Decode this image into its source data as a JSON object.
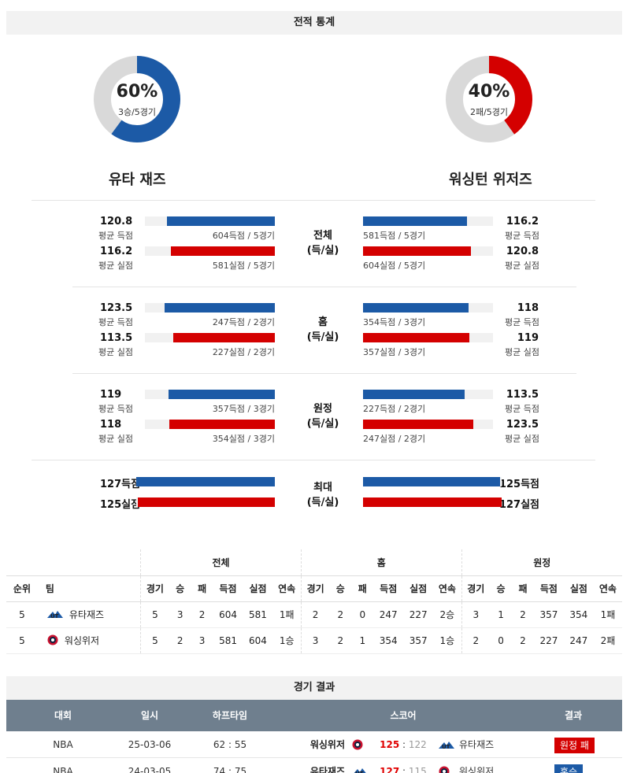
{
  "section_title": "전적 통계",
  "teams": {
    "left": {
      "name": "유타 재즈",
      "pct": "60%",
      "record": "3승/5경기",
      "ratio": 0.6,
      "color": "#1c5aa6"
    },
    "right": {
      "name": "워싱턴 위저즈",
      "pct": "40%",
      "record": "2패/5경기",
      "ratio": 0.4,
      "color": "#d40000"
    }
  },
  "stat_blocks": [
    {
      "label_line1": "전체",
      "label_line2": "(득/실)",
      "left_scored": {
        "value": "120.8",
        "label": "평균 득점",
        "caption": "604득점 / 5경기",
        "ratio": 0.83
      },
      "left_allowed": {
        "value": "116.2",
        "label": "평균 실점",
        "caption": "581실점 / 5경기",
        "ratio": 0.8
      },
      "right_scored": {
        "value": "116.2",
        "label": "평균 득점",
        "caption": "581득점 / 5경기",
        "ratio": 0.8
      },
      "right_allowed": {
        "value": "120.8",
        "label": "평균 실점",
        "caption": "604실점 / 5경기",
        "ratio": 0.83
      }
    },
    {
      "label_line1": "홈",
      "label_line2": "(득/실)",
      "left_scored": {
        "value": "123.5",
        "label": "평균 득점",
        "caption": "247득점 / 2경기",
        "ratio": 0.85
      },
      "left_allowed": {
        "value": "113.5",
        "label": "평균 실점",
        "caption": "227실점 / 2경기",
        "ratio": 0.78
      },
      "right_scored": {
        "value": "118",
        "label": "평균 득점",
        "caption": "354득점 / 3경기",
        "ratio": 0.81
      },
      "right_allowed": {
        "value": "119",
        "label": "평균 실점",
        "caption": "357실점 / 3경기",
        "ratio": 0.82
      }
    },
    {
      "label_line1": "원정",
      "label_line2": "(득/실)",
      "left_scored": {
        "value": "119",
        "label": "평균 득점",
        "caption": "357득점 / 3경기",
        "ratio": 0.82
      },
      "left_allowed": {
        "value": "118",
        "label": "평균 실점",
        "caption": "354실점 / 3경기",
        "ratio": 0.81
      },
      "right_scored": {
        "value": "113.5",
        "label": "평균 득점",
        "caption": "227득점 / 2경기",
        "ratio": 0.78
      },
      "right_allowed": {
        "value": "123.5",
        "label": "평균 실점",
        "caption": "247실점 / 2경기",
        "ratio": 0.85
      }
    }
  ],
  "max_block": {
    "label_line1": "최대",
    "label_line2": "(득/실)",
    "left_scored": {
      "value": "127득점",
      "ratio": 0.87
    },
    "left_allowed": {
      "value": "125실점",
      "ratio": 0.86
    },
    "right_scored": {
      "value": "125득점",
      "ratio": 0.86
    },
    "right_allowed": {
      "value": "127실점",
      "ratio": 0.87
    }
  },
  "record_table": {
    "groups": [
      "전체",
      "홈",
      "원정"
    ],
    "rank_header": "순위",
    "team_header": "팀",
    "sub_headers": [
      "경기",
      "승",
      "패",
      "득점",
      "실점",
      "연속"
    ],
    "rows": [
      {
        "rank": "5",
        "team": "유타재즈",
        "logo": "jazz-logo",
        "cells": [
          "5",
          "3",
          "2",
          "604",
          "581",
          "1패",
          "2",
          "2",
          "0",
          "247",
          "227",
          "2승",
          "3",
          "1",
          "2",
          "357",
          "354",
          "1패"
        ]
      },
      {
        "rank": "5",
        "team": "워싱위저",
        "logo": "wizards-logo",
        "cells": [
          "5",
          "2",
          "3",
          "581",
          "604",
          "1승",
          "3",
          "2",
          "1",
          "354",
          "357",
          "1승",
          "2",
          "0",
          "2",
          "227",
          "247",
          "2패"
        ]
      }
    ]
  },
  "results": {
    "title": "경기 결과",
    "headers": [
      "대회",
      "일시",
      "하프타임",
      "스코어",
      "결과"
    ],
    "rows": [
      {
        "league": "NBA",
        "date": "25-03-06",
        "half": "62 : 55",
        "home": "워싱위저",
        "home_logo": "wizards-logo",
        "home_score": "125",
        "away_score": "122",
        "away": "유타재즈",
        "away_logo": "jazz-logo",
        "result": "원정 패",
        "result_color": "#d40000"
      },
      {
        "league": "NBA",
        "date": "24-03-05",
        "half": "74 : 75",
        "home": "유타재즈",
        "home_logo": "jazz-logo",
        "home_score": "127",
        "away_score": "115",
        "away": "워싱위저",
        "away_logo": "wizards-logo",
        "result": "홈승",
        "result_color": "#1c5aa6"
      }
    ]
  }
}
